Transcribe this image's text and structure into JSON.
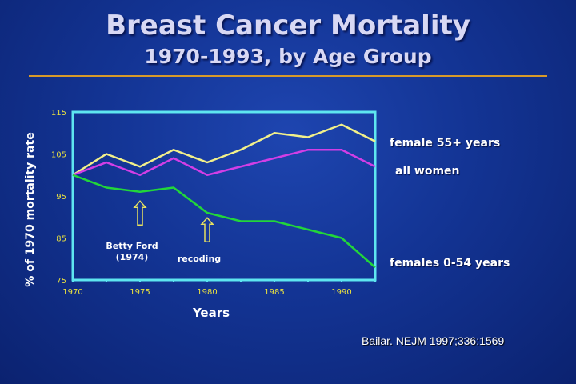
{
  "title": "Breast Cancer Mortality",
  "subtitle": "1970-1993,  by Age Group",
  "citation": "Bailar. NEJM 1997;336:1569",
  "chart_data": {
    "type": "line",
    "xlabel": "Years",
    "ylabel": "% of 1970 mortality rate",
    "xlim": [
      1970,
      1992.5
    ],
    "ylim": [
      75,
      115
    ],
    "x_ticks": [
      "1970",
      "1975",
      "1980",
      "1985",
      "1990"
    ],
    "y_ticks": [
      "115",
      "105",
      "95",
      "85",
      "75"
    ],
    "x": [
      1970,
      1972.5,
      1975,
      1977.5,
      1980,
      1982.5,
      1985,
      1987.5,
      1990,
      1992.5
    ],
    "series": [
      {
        "name": "female 55+ years",
        "color": "#f2f08a",
        "values": [
          100,
          105,
          102,
          106,
          103,
          106,
          110,
          109,
          112,
          108
        ]
      },
      {
        "name": "all women",
        "color": "#d23ee6",
        "values": [
          100,
          103,
          100,
          104,
          100,
          102,
          104,
          106,
          106,
          102
        ]
      },
      {
        "name": "females 0-54 years",
        "color": "#22d63a",
        "values": [
          100,
          97,
          96,
          97,
          91,
          89,
          89,
          87,
          85,
          78
        ]
      }
    ],
    "annotations": [
      {
        "text": "Betty Ford",
        "text2": "(1974)",
        "x": 1975,
        "arrow_y": 90
      },
      {
        "text": "recoding",
        "x": 1980,
        "arrow_y": 86
      }
    ],
    "frame_color": "#5ee6f0",
    "grid": false
  }
}
